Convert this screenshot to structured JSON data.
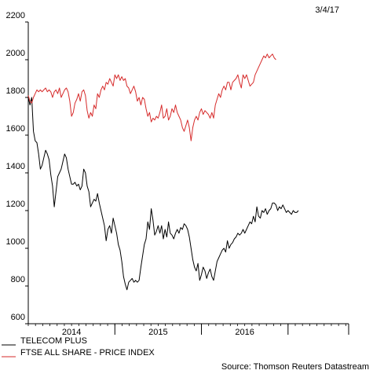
{
  "chart_data": {
    "type": "line",
    "date_label": "3/4/17",
    "source": "Source: Thomson Reuters Datastream",
    "y_range": [
      600,
      2200
    ],
    "y_ticks": [
      600,
      800,
      1000,
      1200,
      1400,
      1600,
      1800,
      2000,
      2200
    ],
    "x_range": [
      2013.5,
      2017.2
    ],
    "x_tick_labels": [
      {
        "label": "2014",
        "x": 2014.0
      },
      {
        "label": "2015",
        "x": 2015.0
      },
      {
        "label": "2016",
        "x": 2016.0
      }
    ],
    "x_year_boundaries": [
      2014.5,
      2015.5,
      2016.5
    ],
    "grid": false,
    "legend_position": "bottom-left",
    "series": [
      {
        "name": "TELECOM PLUS",
        "color": "#000000",
        "points": [
          [
            2013.5,
            1800
          ],
          [
            2013.52,
            1760
          ],
          [
            2013.54,
            1800
          ],
          [
            2013.56,
            1620
          ],
          [
            2013.58,
            1570
          ],
          [
            2013.6,
            1560
          ],
          [
            2013.62,
            1500
          ],
          [
            2013.64,
            1420
          ],
          [
            2013.66,
            1440
          ],
          [
            2013.68,
            1480
          ],
          [
            2013.7,
            1520
          ],
          [
            2013.72,
            1500
          ],
          [
            2013.74,
            1470
          ],
          [
            2013.76,
            1390
          ],
          [
            2013.78,
            1330
          ],
          [
            2013.8,
            1220
          ],
          [
            2013.82,
            1300
          ],
          [
            2013.84,
            1380
          ],
          [
            2013.86,
            1400
          ],
          [
            2013.88,
            1420
          ],
          [
            2013.9,
            1460
          ],
          [
            2013.92,
            1500
          ],
          [
            2013.94,
            1480
          ],
          [
            2013.96,
            1420
          ],
          [
            2013.98,
            1380
          ],
          [
            2014.0,
            1340
          ],
          [
            2014.02,
            1340
          ],
          [
            2014.04,
            1350
          ],
          [
            2014.06,
            1330
          ],
          [
            2014.08,
            1340
          ],
          [
            2014.1,
            1310
          ],
          [
            2014.12,
            1330
          ],
          [
            2014.14,
            1420
          ],
          [
            2014.16,
            1400
          ],
          [
            2014.18,
            1330
          ],
          [
            2014.2,
            1300
          ],
          [
            2014.22,
            1220
          ],
          [
            2014.24,
            1240
          ],
          [
            2014.26,
            1260
          ],
          [
            2014.28,
            1250
          ],
          [
            2014.3,
            1290
          ],
          [
            2014.32,
            1240
          ],
          [
            2014.34,
            1200
          ],
          [
            2014.36,
            1160
          ],
          [
            2014.38,
            1120
          ],
          [
            2014.4,
            1040
          ],
          [
            2014.42,
            1100
          ],
          [
            2014.44,
            1120
          ],
          [
            2014.46,
            1080
          ],
          [
            2014.48,
            1160
          ],
          [
            2014.5,
            1120
          ],
          [
            2014.52,
            1080
          ],
          [
            2014.54,
            1020
          ],
          [
            2014.56,
            990
          ],
          [
            2014.58,
            930
          ],
          [
            2014.6,
            850
          ],
          [
            2014.62,
            810
          ],
          [
            2014.64,
            780
          ],
          [
            2014.66,
            820
          ],
          [
            2014.68,
            830
          ],
          [
            2014.7,
            840
          ],
          [
            2014.72,
            820
          ],
          [
            2014.74,
            830
          ],
          [
            2014.76,
            820
          ],
          [
            2014.78,
            830
          ],
          [
            2014.8,
            900
          ],
          [
            2014.82,
            960
          ],
          [
            2014.84,
            1020
          ],
          [
            2014.86,
            1050
          ],
          [
            2014.88,
            1140
          ],
          [
            2014.9,
            1100
          ],
          [
            2014.92,
            1210
          ],
          [
            2014.94,
            1150
          ],
          [
            2014.96,
            1070
          ],
          [
            2014.98,
            1090
          ],
          [
            2015.0,
            1120
          ],
          [
            2015.02,
            1080
          ],
          [
            2015.04,
            1120
          ],
          [
            2015.06,
            1050
          ],
          [
            2015.08,
            1100
          ],
          [
            2015.1,
            1060
          ],
          [
            2015.12,
            1140
          ],
          [
            2015.14,
            1080
          ],
          [
            2015.16,
            1070
          ],
          [
            2015.18,
            1050
          ],
          [
            2015.2,
            1080
          ],
          [
            2015.22,
            1100
          ],
          [
            2015.24,
            1080
          ],
          [
            2015.26,
            1110
          ],
          [
            2015.28,
            1100
          ],
          [
            2015.3,
            1130
          ],
          [
            2015.32,
            1120
          ],
          [
            2015.34,
            1100
          ],
          [
            2015.36,
            1060
          ],
          [
            2015.38,
            1000
          ],
          [
            2015.4,
            940
          ],
          [
            2015.42,
            900
          ],
          [
            2015.44,
            880
          ],
          [
            2015.46,
            920
          ],
          [
            2015.48,
            830
          ],
          [
            2015.5,
            860
          ],
          [
            2015.52,
            900
          ],
          [
            2015.54,
            880
          ],
          [
            2015.56,
            840
          ],
          [
            2015.58,
            870
          ],
          [
            2015.6,
            890
          ],
          [
            2015.62,
            850
          ],
          [
            2015.64,
            830
          ],
          [
            2015.66,
            880
          ],
          [
            2015.68,
            930
          ],
          [
            2015.7,
            950
          ],
          [
            2015.72,
            970
          ],
          [
            2015.74,
            990
          ],
          [
            2015.76,
            1000
          ],
          [
            2015.78,
            980
          ],
          [
            2015.8,
            1040
          ],
          [
            2015.82,
            1000
          ],
          [
            2015.84,
            1020
          ],
          [
            2015.86,
            1030
          ],
          [
            2015.88,
            1050
          ],
          [
            2015.9,
            1060
          ],
          [
            2015.92,
            1080
          ],
          [
            2015.94,
            1070
          ],
          [
            2015.96,
            1080
          ],
          [
            2015.98,
            1100
          ],
          [
            2016.0,
            1080
          ],
          [
            2016.02,
            1100
          ],
          [
            2016.04,
            1120
          ],
          [
            2016.06,
            1140
          ],
          [
            2016.08,
            1130
          ],
          [
            2016.1,
            1170
          ],
          [
            2016.12,
            1140
          ],
          [
            2016.14,
            1220
          ],
          [
            2016.16,
            1170
          ],
          [
            2016.18,
            1160
          ],
          [
            2016.2,
            1200
          ],
          [
            2016.22,
            1190
          ],
          [
            2016.24,
            1210
          ],
          [
            2016.26,
            1180
          ],
          [
            2016.28,
            1200
          ],
          [
            2016.3,
            1210
          ],
          [
            2016.32,
            1240
          ],
          [
            2016.34,
            1240
          ],
          [
            2016.36,
            1230
          ],
          [
            2016.38,
            1200
          ],
          [
            2016.4,
            1220
          ],
          [
            2016.42,
            1210
          ],
          [
            2016.44,
            1230
          ],
          [
            2016.46,
            1210
          ],
          [
            2016.48,
            1190
          ],
          [
            2016.5,
            1200
          ],
          [
            2016.52,
            1190
          ],
          [
            2016.54,
            1180
          ],
          [
            2016.56,
            1200
          ],
          [
            2016.58,
            1190
          ],
          [
            2016.6,
            1190
          ],
          [
            2016.62,
            1200
          ]
        ]
      },
      {
        "name": "FTSE ALL SHARE - PRICE INDEX",
        "color": "#d62a2a",
        "points": [
          [
            2013.5,
            1810
          ],
          [
            2013.52,
            1780
          ],
          [
            2013.54,
            1770
          ],
          [
            2013.56,
            1800
          ],
          [
            2013.58,
            1820
          ],
          [
            2013.6,
            1840
          ],
          [
            2013.62,
            1830
          ],
          [
            2013.64,
            1840
          ],
          [
            2013.66,
            1830
          ],
          [
            2013.68,
            1840
          ],
          [
            2013.7,
            1850
          ],
          [
            2013.72,
            1830
          ],
          [
            2013.74,
            1840
          ],
          [
            2013.76,
            1830
          ],
          [
            2013.78,
            1800
          ],
          [
            2013.8,
            1830
          ],
          [
            2013.82,
            1840
          ],
          [
            2013.84,
            1820
          ],
          [
            2013.86,
            1850
          ],
          [
            2013.88,
            1800
          ],
          [
            2013.9,
            1820
          ],
          [
            2013.92,
            1840
          ],
          [
            2013.94,
            1850
          ],
          [
            2013.96,
            1830
          ],
          [
            2013.98,
            1780
          ],
          [
            2014.0,
            1700
          ],
          [
            2014.02,
            1720
          ],
          [
            2014.04,
            1770
          ],
          [
            2014.06,
            1790
          ],
          [
            2014.08,
            1820
          ],
          [
            2014.1,
            1780
          ],
          [
            2014.12,
            1830
          ],
          [
            2014.14,
            1840
          ],
          [
            2014.16,
            1810
          ],
          [
            2014.18,
            1730
          ],
          [
            2014.2,
            1690
          ],
          [
            2014.22,
            1720
          ],
          [
            2014.24,
            1700
          ],
          [
            2014.26,
            1760
          ],
          [
            2014.28,
            1740
          ],
          [
            2014.3,
            1820
          ],
          [
            2014.32,
            1800
          ],
          [
            2014.34,
            1840
          ],
          [
            2014.36,
            1860
          ],
          [
            2014.38,
            1840
          ],
          [
            2014.4,
            1880
          ],
          [
            2014.42,
            1870
          ],
          [
            2014.44,
            1900
          ],
          [
            2014.46,
            1880
          ],
          [
            2014.48,
            1860
          ],
          [
            2014.5,
            1920
          ],
          [
            2014.52,
            1900
          ],
          [
            2014.54,
            1920
          ],
          [
            2014.56,
            1890
          ],
          [
            2014.58,
            1910
          ],
          [
            2014.6,
            1890
          ],
          [
            2014.62,
            1900
          ],
          [
            2014.64,
            1860
          ],
          [
            2014.66,
            1850
          ],
          [
            2014.68,
            1820
          ],
          [
            2014.7,
            1840
          ],
          [
            2014.72,
            1860
          ],
          [
            2014.74,
            1830
          ],
          [
            2014.76,
            1780
          ],
          [
            2014.78,
            1800
          ],
          [
            2014.8,
            1760
          ],
          [
            2014.82,
            1800
          ],
          [
            2014.84,
            1790
          ],
          [
            2014.86,
            1740
          ],
          [
            2014.88,
            1700
          ],
          [
            2014.9,
            1720
          ],
          [
            2014.92,
            1670
          ],
          [
            2014.94,
            1690
          ],
          [
            2014.96,
            1680
          ],
          [
            2014.98,
            1700
          ],
          [
            2015.0,
            1690
          ],
          [
            2015.02,
            1720
          ],
          [
            2015.04,
            1760
          ],
          [
            2015.06,
            1690
          ],
          [
            2015.08,
            1700
          ],
          [
            2015.1,
            1740
          ],
          [
            2015.12,
            1680
          ],
          [
            2015.14,
            1700
          ],
          [
            2015.16,
            1740
          ],
          [
            2015.18,
            1720
          ],
          [
            2015.2,
            1760
          ],
          [
            2015.22,
            1720
          ],
          [
            2015.24,
            1700
          ],
          [
            2015.26,
            1680
          ],
          [
            2015.28,
            1640
          ],
          [
            2015.3,
            1620
          ],
          [
            2015.32,
            1650
          ],
          [
            2015.34,
            1680
          ],
          [
            2015.36,
            1640
          ],
          [
            2015.38,
            1570
          ],
          [
            2015.4,
            1640
          ],
          [
            2015.42,
            1680
          ],
          [
            2015.44,
            1700
          ],
          [
            2015.46,
            1680
          ],
          [
            2015.48,
            1720
          ],
          [
            2015.5,
            1740
          ],
          [
            2015.52,
            1710
          ],
          [
            2015.54,
            1730
          ],
          [
            2015.56,
            1720
          ],
          [
            2015.58,
            1710
          ],
          [
            2015.6,
            1690
          ],
          [
            2015.62,
            1720
          ],
          [
            2015.64,
            1690
          ],
          [
            2015.66,
            1760
          ],
          [
            2015.68,
            1790
          ],
          [
            2015.7,
            1820
          ],
          [
            2015.72,
            1800
          ],
          [
            2015.74,
            1840
          ],
          [
            2015.76,
            1860
          ],
          [
            2015.78,
            1840
          ],
          [
            2015.8,
            1880
          ],
          [
            2015.82,
            1880
          ],
          [
            2015.84,
            1840
          ],
          [
            2015.86,
            1880
          ],
          [
            2015.88,
            1890
          ],
          [
            2015.9,
            1900
          ],
          [
            2015.92,
            1920
          ],
          [
            2015.94,
            1880
          ],
          [
            2015.96,
            1850
          ],
          [
            2015.98,
            1920
          ],
          [
            2016.0,
            1900
          ],
          [
            2016.02,
            1920
          ],
          [
            2016.04,
            1890
          ],
          [
            2016.06,
            1860
          ],
          [
            2016.08,
            1870
          ],
          [
            2016.1,
            1880
          ],
          [
            2016.12,
            1920
          ],
          [
            2016.14,
            1940
          ],
          [
            2016.16,
            1960
          ],
          [
            2016.18,
            1980
          ],
          [
            2016.2,
            2000
          ],
          [
            2016.22,
            2020
          ],
          [
            2016.24,
            2010
          ],
          [
            2016.26,
            2030
          ],
          [
            2016.28,
            2010
          ],
          [
            2016.3,
            2020
          ],
          [
            2016.32,
            2030
          ],
          [
            2016.34,
            2010
          ],
          [
            2016.36,
            2000
          ]
        ]
      }
    ]
  }
}
